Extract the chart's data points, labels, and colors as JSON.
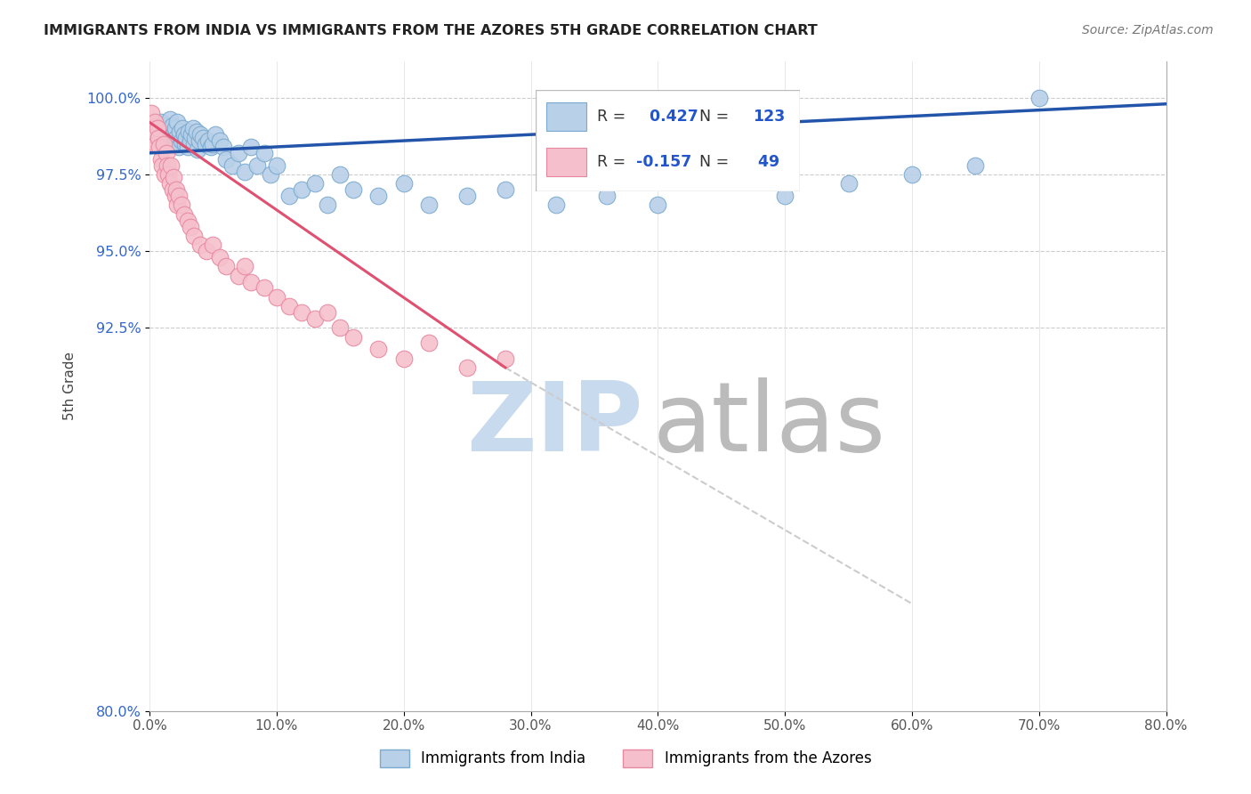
{
  "title": "IMMIGRANTS FROM INDIA VS IMMIGRANTS FROM THE AZORES 5TH GRADE CORRELATION CHART",
  "source": "Source: ZipAtlas.com",
  "ylabel": "5th Grade",
  "xmin": 0.0,
  "xmax": 80.0,
  "ymin": 91.0,
  "ymax": 101.2,
  "ytick_labels": [
    "100.0%",
    "97.5%",
    "95.0%",
    "92.5%",
    "80.0%"
  ],
  "ytick_vals": [
    100.0,
    97.5,
    95.0,
    92.5,
    80.0
  ],
  "xtick_vals": [
    0.0,
    10.0,
    20.0,
    30.0,
    40.0,
    50.0,
    60.0,
    70.0,
    80.0
  ],
  "india_R": 0.427,
  "india_N": 123,
  "azores_R": -0.157,
  "azores_N": 49,
  "india_color": "#b8d0e8",
  "india_edge": "#7aaad0",
  "azores_color": "#f5c0cc",
  "azores_edge": "#e888a0",
  "trend_india_color": "#2255aa",
  "trend_azores_color": "#e05070",
  "trend_azores_dash_color": "#cccccc",
  "watermark_zip_color": "#c8daee",
  "watermark_atlas_color": "#bbbbbb",
  "india_x": [
    0.3,
    0.5,
    0.7,
    0.8,
    0.9,
    1.0,
    1.1,
    1.2,
    1.3,
    1.4,
    1.5,
    1.6,
    1.6,
    1.7,
    1.8,
    1.9,
    2.0,
    2.0,
    2.1,
    2.2,
    2.3,
    2.4,
    2.5,
    2.6,
    2.7,
    2.8,
    2.9,
    3.0,
    3.1,
    3.2,
    3.3,
    3.4,
    3.5,
    3.6,
    3.7,
    3.8,
    3.9,
    4.0,
    4.2,
    4.4,
    4.6,
    4.8,
    5.0,
    5.2,
    5.5,
    5.8,
    6.0,
    6.5,
    7.0,
    7.5,
    8.0,
    8.5,
    9.0,
    9.5,
    10.0,
    11.0,
    12.0,
    13.0,
    14.0,
    15.0,
    16.0,
    18.0,
    20.0,
    22.0,
    25.0,
    28.0,
    32.0,
    36.0,
    40.0,
    45.0,
    50.0,
    55.0,
    60.0,
    65.0,
    70.0
  ],
  "india_y": [
    98.8,
    99.0,
    99.1,
    98.9,
    99.2,
    98.7,
    99.0,
    98.8,
    99.1,
    98.6,
    98.9,
    99.0,
    99.3,
    98.7,
    99.1,
    98.8,
    98.5,
    99.0,
    98.7,
    99.2,
    98.4,
    98.9,
    98.6,
    99.0,
    98.8,
    98.5,
    98.7,
    98.4,
    98.9,
    98.6,
    98.8,
    99.0,
    98.5,
    98.7,
    98.9,
    98.3,
    98.6,
    98.8,
    98.7,
    98.5,
    98.6,
    98.4,
    98.5,
    98.8,
    98.6,
    98.4,
    98.0,
    97.8,
    98.2,
    97.6,
    98.4,
    97.8,
    98.2,
    97.5,
    97.8,
    96.8,
    97.0,
    97.2,
    96.5,
    97.5,
    97.0,
    96.8,
    97.2,
    96.5,
    96.8,
    97.0,
    96.5,
    96.8,
    96.5,
    97.5,
    96.8,
    97.2,
    97.5,
    97.8,
    100.0
  ],
  "azores_x": [
    0.15,
    0.25,
    0.35,
    0.45,
    0.5,
    0.6,
    0.7,
    0.8,
    0.9,
    1.0,
    1.1,
    1.2,
    1.3,
    1.4,
    1.5,
    1.6,
    1.7,
    1.8,
    1.9,
    2.0,
    2.1,
    2.2,
    2.3,
    2.5,
    2.7,
    3.0,
    3.2,
    3.5,
    4.0,
    4.5,
    5.0,
    5.5,
    6.0,
    7.0,
    7.5,
    8.0,
    9.0,
    10.0,
    11.0,
    12.0,
    13.0,
    14.0,
    15.0,
    16.0,
    18.0,
    20.0,
    22.0,
    25.0,
    28.0
  ],
  "azores_y": [
    99.5,
    99.0,
    98.8,
    99.2,
    98.5,
    99.0,
    98.7,
    98.4,
    98.0,
    97.8,
    98.5,
    97.5,
    98.2,
    97.8,
    97.5,
    97.2,
    97.8,
    97.0,
    97.4,
    96.8,
    97.0,
    96.5,
    96.8,
    96.5,
    96.2,
    96.0,
    95.8,
    95.5,
    95.2,
    95.0,
    95.2,
    94.8,
    94.5,
    94.2,
    94.5,
    94.0,
    93.8,
    93.5,
    93.2,
    93.0,
    92.8,
    93.0,
    92.5,
    92.2,
    91.8,
    91.5,
    92.0,
    91.2,
    91.5
  ],
  "trend_india_x0": 0.0,
  "trend_india_x1": 80.0,
  "trend_india_y0": 98.2,
  "trend_india_y1": 99.8,
  "trend_azores_x0": 0.0,
  "trend_azores_x1": 28.0,
  "trend_azores_y0": 99.2,
  "trend_azores_y1": 91.2,
  "trend_azores_dash_x0": 28.0,
  "trend_azores_dash_x1": 60.0,
  "trend_azores_dash_y0": 91.2,
  "trend_azores_dash_y1": 83.5
}
